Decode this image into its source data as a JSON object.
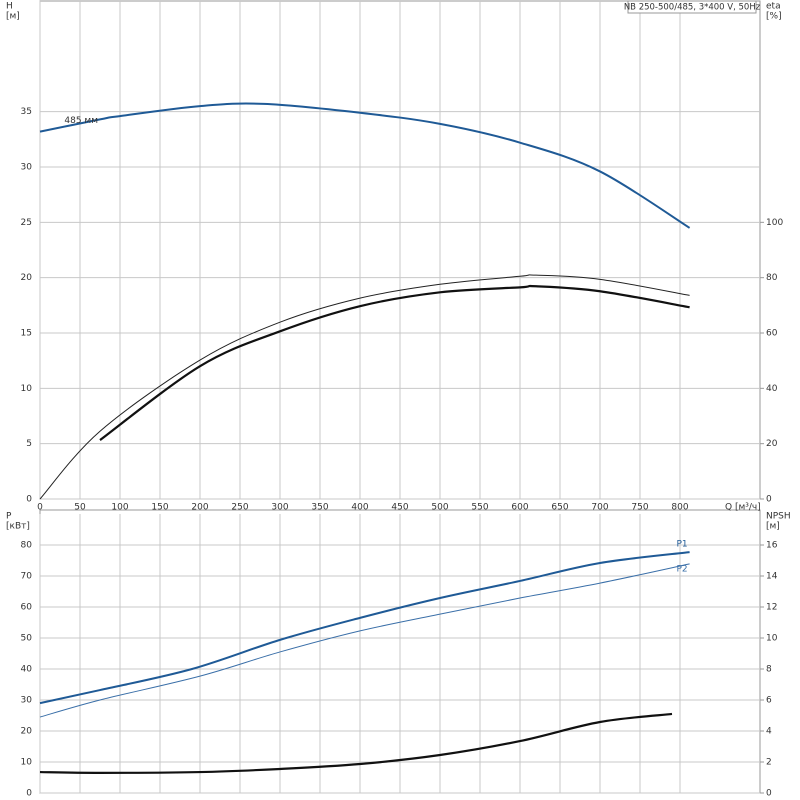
{
  "chart_data": [
    {
      "type": "line",
      "title": "NB 250-500/485, 3*400 V, 50Hz",
      "ylabel": "H",
      "yunit": "[м]",
      "y2label": "eta",
      "y2unit": "[%]",
      "xlabel": "Q [м³/ч]",
      "xlim": [
        0,
        900
      ],
      "xticks": [
        0,
        50,
        100,
        150,
        200,
        250,
        300,
        350,
        400,
        450,
        500,
        550,
        600,
        650,
        700,
        750,
        800
      ],
      "ylim": [
        0,
        45
      ],
      "yticks": [
        0,
        5,
        10,
        15,
        20,
        25,
        30,
        35
      ],
      "y2lim": [
        0,
        180
      ],
      "y2ticks": [
        0,
        20,
        40,
        60,
        80,
        100
      ],
      "grid": true,
      "series": [
        {
          "name": "485 мм",
          "color": "#1f5a96",
          "width": 2,
          "x": [
            0,
            75,
            100,
            200,
            280,
            400,
            500,
            600,
            700,
            812
          ],
          "values": [
            33.2,
            34.3,
            34.6,
            35.5,
            35.7,
            34.9,
            33.9,
            32.2,
            29.6,
            24.5
          ]
        },
        {
          "color": "#222222",
          "width": 1,
          "axis": "y2",
          "x": [
            0,
            75,
            200,
            300,
            400,
            500,
            600,
            620,
            700,
            812
          ],
          "values": [
            0,
            24.5,
            50.2,
            63.9,
            72.6,
            77.6,
            80.5,
            80.9,
            79.4,
            73.6
          ]
        },
        {
          "color": "#111111",
          "width": 2.2,
          "axis": "y2",
          "x": [
            75,
            200,
            300,
            400,
            500,
            600,
            620,
            700,
            812
          ],
          "values": [
            21.3,
            48.0,
            60.6,
            69.7,
            74.7,
            76.5,
            76.9,
            75.1,
            69.3
          ]
        }
      ]
    },
    {
      "type": "line",
      "ylabel": "P",
      "yunit": "[кВт]",
      "y2label": "NPSH",
      "y2unit": "[м]",
      "xlim": [
        0,
        900
      ],
      "xticks": [
        0,
        50,
        100,
        150,
        200,
        250,
        300,
        350,
        400,
        450,
        500,
        550,
        600,
        650,
        700,
        750,
        800
      ],
      "ylim": [
        0,
        90
      ],
      "yticks": [
        0,
        10,
        20,
        30,
        40,
        50,
        60,
        70,
        80
      ],
      "y2lim": [
        0,
        18
      ],
      "y2ticks": [
        0,
        2,
        4,
        6,
        8,
        10,
        12,
        14,
        16
      ],
      "grid": true,
      "series": [
        {
          "name": "P1",
          "color": "#1f5a96",
          "width": 2,
          "x": [
            0,
            75,
            190,
            300,
            400,
            500,
            600,
            700,
            812
          ],
          "values": [
            29.0,
            33.2,
            40.0,
            49.4,
            56.5,
            62.9,
            68.4,
            74.2,
            77.7
          ]
        },
        {
          "name": "P2",
          "color": "#3a6fa8",
          "width": 1,
          "x": [
            0,
            75,
            200,
            300,
            400,
            500,
            600,
            700,
            812
          ],
          "values": [
            24.5,
            30.0,
            37.7,
            45.5,
            52.3,
            57.7,
            62.9,
            67.7,
            73.9
          ]
        },
        {
          "color": "#111111",
          "width": 2.2,
          "axis": "y2",
          "x": [
            0,
            75,
            200,
            300,
            400,
            500,
            600,
            700,
            790
          ],
          "values": [
            1.35,
            1.3,
            1.35,
            1.55,
            1.87,
            2.45,
            3.35,
            4.58,
            5.1
          ]
        }
      ]
    }
  ]
}
